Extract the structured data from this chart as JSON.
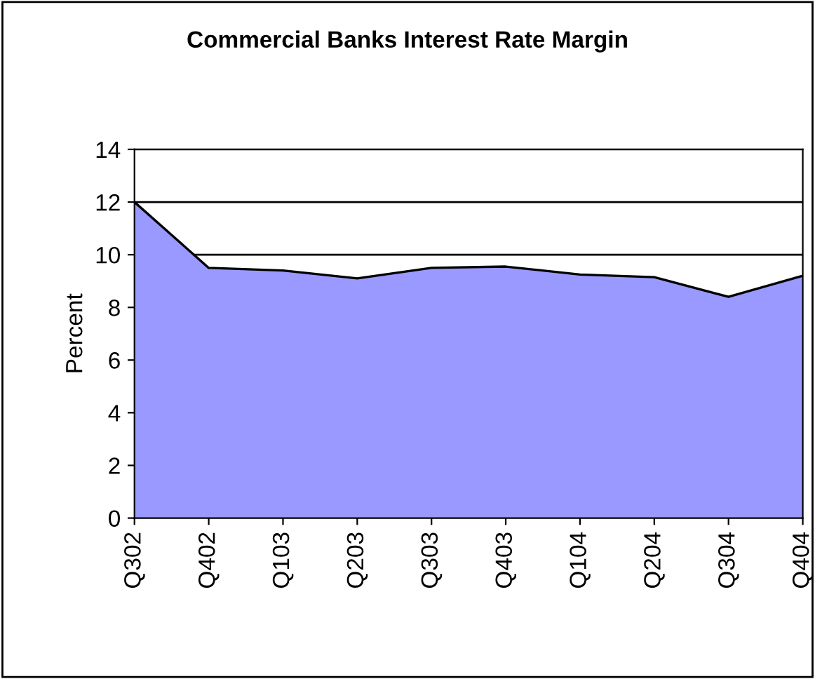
{
  "chart_data": {
    "type": "area",
    "title": "Commercial Banks Interest Rate Margin",
    "ylabel": "Percent",
    "categories": [
      "Q302",
      "Q402",
      "Q103",
      "Q203",
      "Q303",
      "Q403",
      "Q104",
      "Q204",
      "Q304",
      "Q404"
    ],
    "series": [
      {
        "color": "#9999ff",
        "values": [
          12.0,
          9.5,
          9.4,
          9.1,
          9.5,
          9.55,
          9.25,
          9.15,
          8.4,
          9.2
        ]
      }
    ],
    "ylim": [
      0,
      14
    ],
    "yticks": [
      0,
      2,
      4,
      6,
      8,
      10,
      12,
      14
    ],
    "grid": "y",
    "legend": false
  }
}
